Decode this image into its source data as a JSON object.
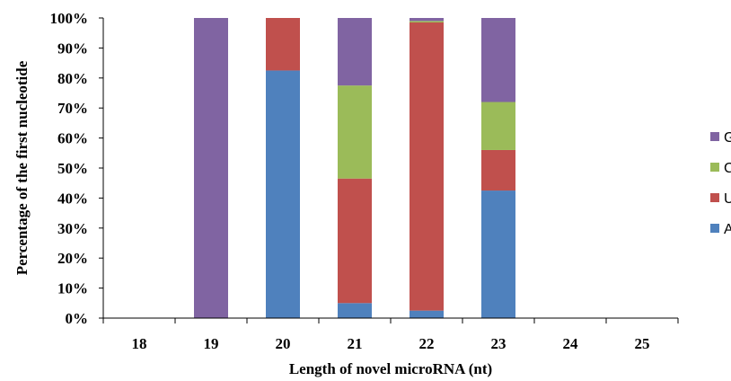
{
  "chart_data": {
    "type": "bar",
    "stacked": true,
    "percent_stacked": true,
    "categories": [
      "18",
      "19",
      "20",
      "21",
      "22",
      "23",
      "24",
      "25"
    ],
    "series": [
      {
        "name": "A",
        "color": "#4F81BD",
        "values": [
          0,
          0,
          82.5,
          5,
          2.5,
          42.5,
          0,
          0
        ]
      },
      {
        "name": "U",
        "color": "#C0504D",
        "values": [
          0,
          0,
          17.5,
          41.5,
          96,
          13.5,
          0,
          0
        ]
      },
      {
        "name": "C",
        "color": "#9BBB59",
        "values": [
          0,
          0,
          0,
          31,
          0.5,
          16,
          0,
          0
        ]
      },
      {
        "name": "G",
        "color": "#8064A2",
        "values": [
          0,
          100,
          0,
          22.5,
          1,
          28,
          0,
          0
        ]
      }
    ],
    "xlabel": "Length of novel  microRNA (nt)",
    "ylabel": "Percentage of the first nucleotide",
    "yticks": [
      "0%",
      "10%",
      "20%",
      "30%",
      "40%",
      "50%",
      "60%",
      "70%",
      "80%",
      "90%",
      "100%"
    ],
    "ylim": [
      0,
      100
    ],
    "grid": false,
    "legend": {
      "position": "right",
      "order": [
        "G",
        "C",
        "U",
        "A"
      ]
    }
  }
}
